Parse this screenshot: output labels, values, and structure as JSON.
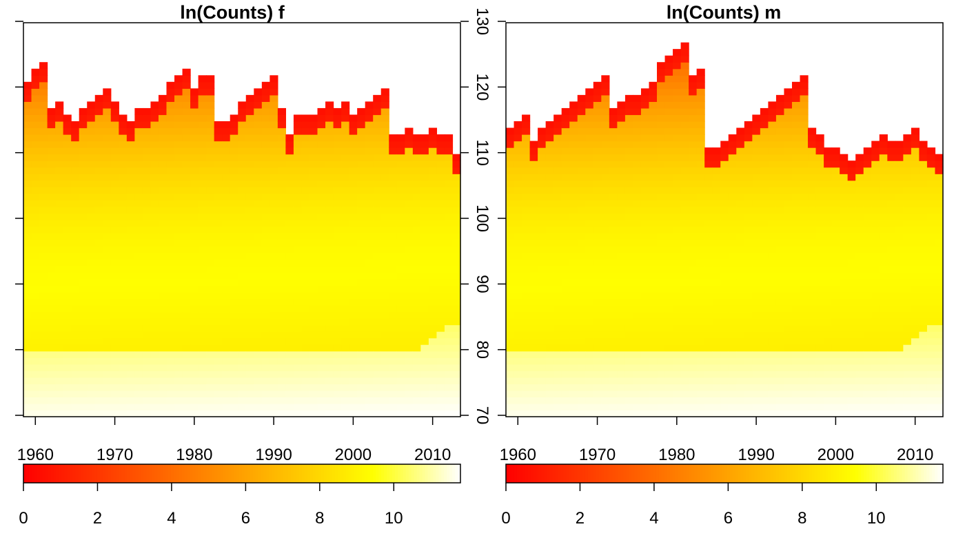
{
  "chart_data": [
    {
      "type": "heatmap",
      "title": "ln(Counts) f",
      "x_range": [
        1959,
        2013
      ],
      "y_range": [
        70,
        130
      ],
      "x_ticks": [
        1960,
        1970,
        1980,
        1990,
        2000,
        2010
      ],
      "y_ticks": [
        70,
        80,
        90,
        100,
        110,
        120,
        130
      ],
      "color_scale": {
        "range": [
          0,
          11.8
        ],
        "ticks": [
          0,
          2,
          4,
          6,
          8,
          10
        ],
        "colors": [
          "#ff0000",
          "#ff8000",
          "#ffff00",
          "#ffffff"
        ]
      },
      "max_age_by_year": [
        121,
        123,
        124,
        117,
        118,
        116,
        115,
        117,
        118,
        119,
        120,
        118,
        116,
        115,
        117,
        117,
        118,
        119,
        121,
        122,
        123,
        120,
        122,
        122,
        115,
        115,
        116,
        118,
        119,
        120,
        121,
        122,
        117,
        113,
        116,
        116,
        116,
        117,
        118,
        117,
        118,
        116,
        117,
        118,
        119,
        120,
        113,
        113,
        114,
        113,
        113,
        114,
        113,
        113,
        110
      ],
      "min_age_by_year": 70,
      "note_low_right": "cells below 80 show cream (high counts), rising towards 84 by 2013"
    },
    {
      "type": "heatmap",
      "title": "ln(Counts) m",
      "x_range": [
        1959,
        2013
      ],
      "y_range": [
        70,
        130
      ],
      "x_ticks": [
        1960,
        1970,
        1980,
        1990,
        2000,
        2010
      ],
      "y_ticks": [
        70,
        80,
        90,
        100,
        110,
        120,
        130
      ],
      "color_scale": {
        "range": [
          0,
          11.8
        ],
        "ticks": [
          0,
          2,
          4,
          6,
          8,
          10
        ],
        "colors": [
          "#ff0000",
          "#ff8000",
          "#ffff00",
          "#ffffff"
        ]
      },
      "max_age_by_year": [
        114,
        115,
        116,
        112,
        114,
        115,
        116,
        117,
        118,
        119,
        120,
        121,
        122,
        117,
        118,
        119,
        119,
        120,
        121,
        124,
        125,
        126,
        127,
        122,
        123,
        111,
        111,
        112,
        113,
        114,
        115,
        116,
        117,
        118,
        119,
        120,
        121,
        122,
        114,
        113,
        111,
        111,
        110,
        109,
        110,
        111,
        112,
        113,
        112,
        112,
        113,
        114,
        112,
        111,
        110
      ],
      "min_age_by_year": 70,
      "note_low_right": "cells below 80 show cream (high counts), rising towards 84 by 2013"
    }
  ]
}
